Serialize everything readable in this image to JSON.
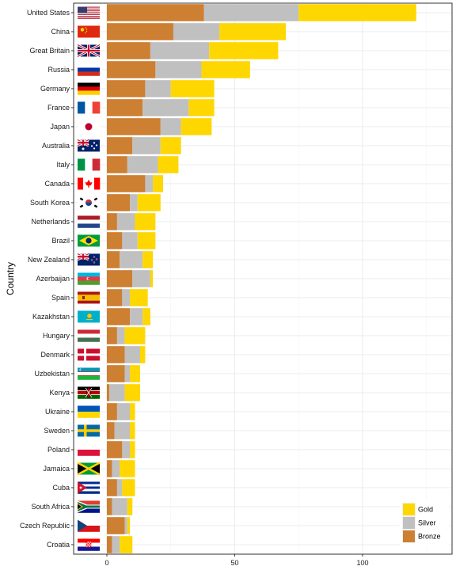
{
  "chart_data": {
    "type": "bar",
    "orientation": "horizontal",
    "stacked": true,
    "ylabel": "Country",
    "xlim": [
      -13,
      135
    ],
    "xticks": [
      0,
      50,
      100
    ],
    "grid": true,
    "legend_position": "bottom-right",
    "categories": [
      "United States",
      "China",
      "Great Britain",
      "Russia",
      "Germany",
      "France",
      "Japan",
      "Australia",
      "Italy",
      "Canada",
      "South Korea",
      "Netherlands",
      "Brazil",
      "New Zealand",
      "Azerbaijan",
      "Spain",
      "Kazakhstan",
      "Hungary",
      "Denmark",
      "Uzbekistan",
      "Kenya",
      "Ukraine",
      "Sweden",
      "Poland",
      "Jamaica",
      "Cuba",
      "South Africa",
      "Czech Republic",
      "Croatia"
    ],
    "series": [
      {
        "name": "Bronze",
        "color": "#CD7F32",
        "values": [
          38,
          26,
          17,
          19,
          15,
          14,
          21,
          10,
          8,
          15,
          9,
          4,
          6,
          5,
          10,
          6,
          9,
          4,
          7,
          7,
          1,
          4,
          3,
          6,
          2,
          4,
          2,
          7,
          2
        ]
      },
      {
        "name": "Silver",
        "color": "#C0C0C0",
        "values": [
          37,
          18,
          23,
          18,
          10,
          18,
          8,
          11,
          12,
          3,
          3,
          7,
          6,
          9,
          7,
          3,
          5,
          3,
          6,
          2,
          6,
          5,
          6,
          3,
          3,
          2,
          6,
          1,
          3
        ]
      },
      {
        "name": "Gold",
        "color": "#FFD700",
        "values": [
          46,
          26,
          27,
          19,
          17,
          10,
          12,
          8,
          8,
          4,
          9,
          8,
          7,
          4,
          1,
          7,
          3,
          8,
          2,
          4,
          6,
          2,
          2,
          2,
          6,
          5,
          2,
          1,
          5
        ]
      }
    ],
    "legend_order": [
      "Gold",
      "Silver",
      "Bronze"
    ],
    "flags": [
      "us-flag-icon",
      "china-flag-icon",
      "great-britain-flag-icon",
      "russia-flag-icon",
      "germany-flag-icon",
      "france-flag-icon",
      "japan-flag-icon",
      "australia-flag-icon",
      "italy-flag-icon",
      "canada-flag-icon",
      "south-korea-flag-icon",
      "netherlands-flag-icon",
      "brazil-flag-icon",
      "new-zealand-flag-icon",
      "azerbaijan-flag-icon",
      "spain-flag-icon",
      "kazakhstan-flag-icon",
      "hungary-flag-icon",
      "denmark-flag-icon",
      "uzbekistan-flag-icon",
      "kenya-flag-icon",
      "ukraine-flag-icon",
      "sweden-flag-icon",
      "poland-flag-icon",
      "jamaica-flag-icon",
      "cuba-flag-icon",
      "south-africa-flag-icon",
      "czech-republic-flag-icon",
      "croatia-flag-icon"
    ]
  }
}
